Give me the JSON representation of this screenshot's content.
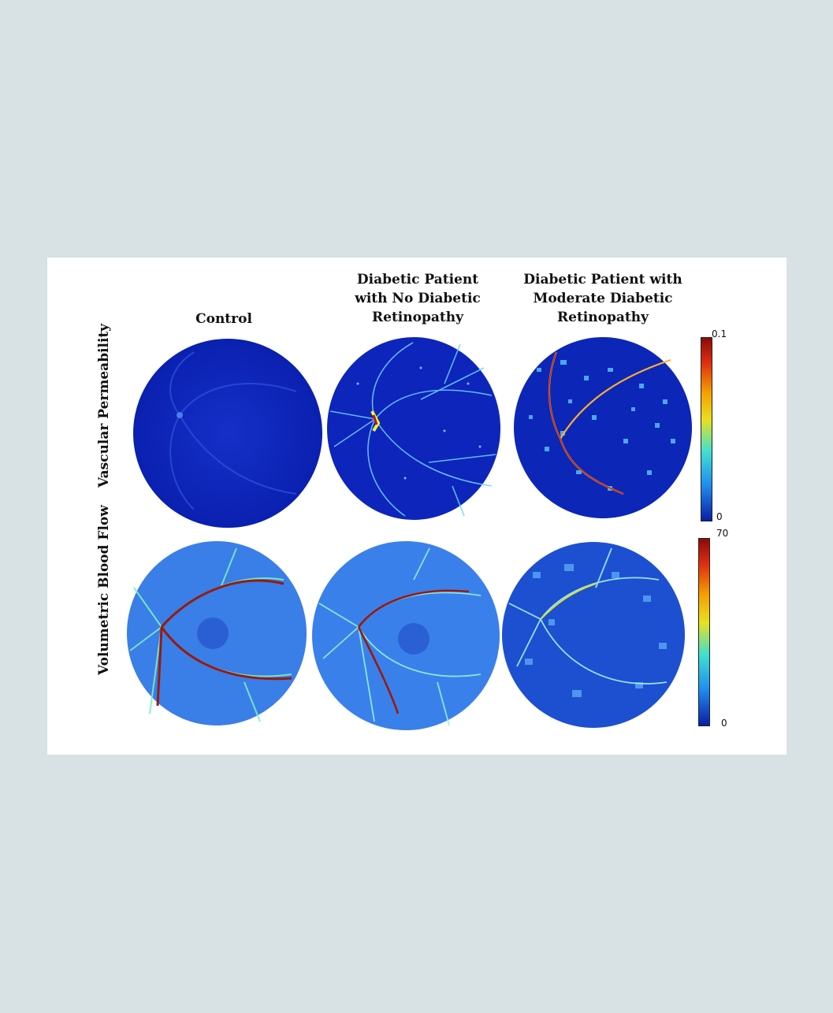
{
  "figure": {
    "columns": [
      "Control",
      "Diabetic Patient\nwith No Diabetic\nRetinopathy",
      "Diabetic Patient with\nModerate Diabetic\nRetinopathy"
    ],
    "rows": [
      "Vascular Permeability",
      "Volumetric Blood Flow"
    ],
    "colorbars": [
      {
        "max_label": "0.1",
        "min_label": "0"
      },
      {
        "max_label": "70",
        "min_label": "0"
      }
    ],
    "colors": {
      "background": "#d8e1e4",
      "panel": "#ffffff",
      "low": "#0a1ea8",
      "mid": "#3fd0ff",
      "high": "#8b0a0a"
    }
  }
}
